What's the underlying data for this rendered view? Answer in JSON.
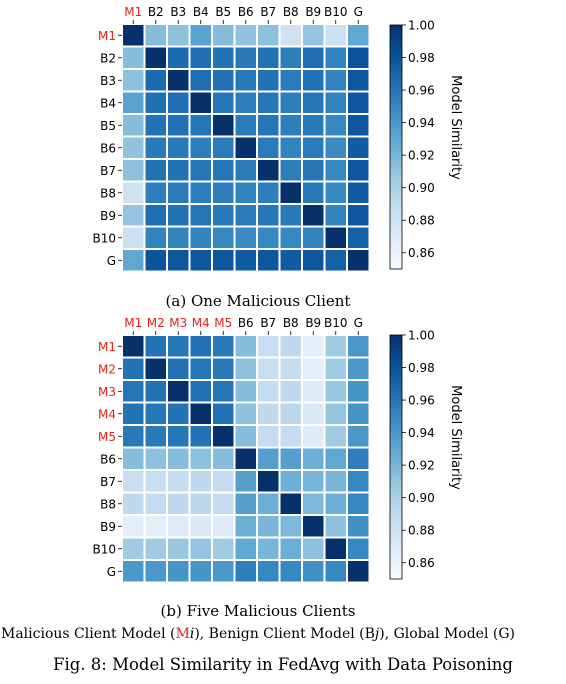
{
  "chart_data": [
    {
      "type": "heatmap",
      "caption": "(a) One Malicious Client",
      "labels": [
        "M1",
        "B2",
        "B3",
        "B4",
        "B5",
        "B6",
        "B7",
        "B8",
        "B9",
        "B10",
        "G"
      ],
      "malicious": [
        0
      ],
      "values": [
        [
          1.0,
          0.915,
          0.912,
          0.933,
          0.915,
          0.911,
          0.913,
          0.88,
          0.91,
          0.882,
          0.93
        ],
        [
          0.915,
          1.0,
          0.966,
          0.963,
          0.962,
          0.958,
          0.962,
          0.955,
          0.964,
          0.952,
          0.98
        ],
        [
          0.912,
          0.966,
          1.0,
          0.964,
          0.962,
          0.958,
          0.962,
          0.957,
          0.962,
          0.952,
          0.978
        ],
        [
          0.933,
          0.963,
          0.964,
          1.0,
          0.96,
          0.955,
          0.96,
          0.955,
          0.96,
          0.952,
          0.978
        ],
        [
          0.915,
          0.962,
          0.962,
          0.96,
          1.0,
          0.957,
          0.96,
          0.955,
          0.958,
          0.95,
          0.978
        ],
        [
          0.911,
          0.958,
          0.958,
          0.955,
          0.957,
          1.0,
          0.957,
          0.952,
          0.957,
          0.948,
          0.975
        ],
        [
          0.913,
          0.962,
          0.962,
          0.96,
          0.96,
          0.957,
          1.0,
          0.955,
          0.96,
          0.95,
          0.978
        ],
        [
          0.88,
          0.955,
          0.957,
          0.955,
          0.955,
          0.952,
          0.955,
          1.0,
          0.958,
          0.95,
          0.975
        ],
        [
          0.91,
          0.964,
          0.962,
          0.96,
          0.958,
          0.957,
          0.96,
          0.958,
          1.0,
          0.952,
          0.978
        ],
        [
          0.882,
          0.952,
          0.952,
          0.952,
          0.95,
          0.948,
          0.95,
          0.95,
          0.952,
          1.0,
          0.972
        ],
        [
          0.93,
          0.98,
          0.978,
          0.978,
          0.978,
          0.975,
          0.978,
          0.975,
          0.978,
          0.972,
          1.0
        ]
      ],
      "colorbar": {
        "label": "Model Similarity",
        "min": 0.85,
        "max": 1.0,
        "ticks": [
          "0.86",
          "0.88",
          "0.90",
          "0.92",
          "0.94",
          "0.96",
          "0.98",
          "1.00"
        ]
      }
    },
    {
      "type": "heatmap",
      "caption": "(b) Five Malicious Clients",
      "labels": [
        "M1",
        "M2",
        "M3",
        "M4",
        "M5",
        "B6",
        "B7",
        "B8",
        "B9",
        "B10",
        "G"
      ],
      "malicious": [
        0,
        1,
        2,
        3,
        4
      ],
      "values": [
        [
          1.0,
          0.962,
          0.96,
          0.962,
          0.958,
          0.915,
          0.885,
          0.89,
          0.865,
          0.905,
          0.94
        ],
        [
          0.962,
          1.0,
          0.962,
          0.96,
          0.958,
          0.912,
          0.885,
          0.888,
          0.865,
          0.905,
          0.94
        ],
        [
          0.96,
          0.962,
          1.0,
          0.962,
          0.96,
          0.915,
          0.888,
          0.89,
          0.868,
          0.908,
          0.942
        ],
        [
          0.962,
          0.96,
          0.962,
          1.0,
          0.962,
          0.912,
          0.89,
          0.892,
          0.87,
          0.91,
          0.942
        ],
        [
          0.958,
          0.958,
          0.96,
          0.962,
          1.0,
          0.915,
          0.888,
          0.888,
          0.868,
          0.905,
          0.94
        ],
        [
          0.915,
          0.912,
          0.915,
          0.912,
          0.915,
          1.0,
          0.935,
          0.935,
          0.925,
          0.93,
          0.955
        ],
        [
          0.885,
          0.885,
          0.888,
          0.89,
          0.888,
          0.935,
          1.0,
          0.925,
          0.92,
          0.92,
          0.95
        ],
        [
          0.89,
          0.888,
          0.89,
          0.892,
          0.888,
          0.935,
          0.925,
          1.0,
          0.918,
          0.925,
          0.95
        ],
        [
          0.865,
          0.865,
          0.868,
          0.87,
          0.868,
          0.925,
          0.92,
          0.918,
          1.0,
          0.912,
          0.945
        ],
        [
          0.905,
          0.905,
          0.908,
          0.91,
          0.905,
          0.93,
          0.92,
          0.925,
          0.912,
          1.0,
          0.95
        ],
        [
          0.94,
          0.94,
          0.942,
          0.942,
          0.94,
          0.955,
          0.95,
          0.95,
          0.945,
          0.95,
          1.0
        ]
      ],
      "colorbar": {
        "label": "Model Similarity",
        "min": 0.85,
        "max": 1.0,
        "ticks": [
          "0.86",
          "0.88",
          "0.90",
          "0.92",
          "0.94",
          "0.96",
          "0.98",
          "1.00"
        ]
      }
    }
  ],
  "legend": {
    "part1": "Malicious Client Model (",
    "mal_letter": "M",
    "mal_index": "i",
    "part2": "), Benign Client Model (B",
    "ben_index": "j",
    "part3": "), Global Model (G)"
  },
  "figure_caption": "Fig. 8: Model Similarity in FedAvg with Data Poisoning",
  "colors": {
    "malicious_label": "#e8201c",
    "benign_label": "#000000",
    "cell_border": "#ffffff",
    "cmap_low": "#f7fbff",
    "cmap_high": "#08306b"
  }
}
